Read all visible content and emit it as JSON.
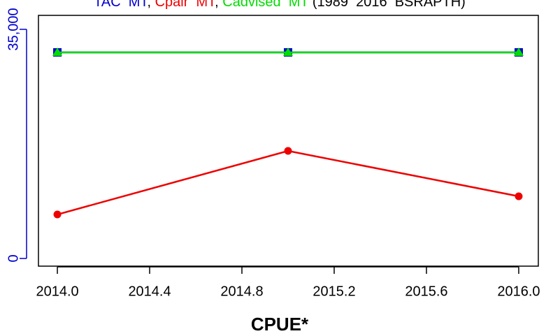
{
  "chart_data": {
    "type": "line",
    "title_parts": [
      {
        "text": "TAC  MT",
        "color": "#0000cc"
      },
      {
        "text": ", ",
        "color": "#000000"
      },
      {
        "text": "Cpair  MT",
        "color": "#ee0000"
      },
      {
        "text": ", ",
        "color": "#000000"
      },
      {
        "text": "Cadvised  MT",
        "color": "#00dd00"
      },
      {
        "text": " (1989  2016  BSRAPTH)",
        "color": "#000000"
      }
    ],
    "x_label": "CPUE*",
    "x": [
      2014,
      2015,
      2016
    ],
    "series": [
      {
        "name": "TAC",
        "color": "#0000cc",
        "marker": "square",
        "values": [
          31480,
          31480,
          31480
        ]
      },
      {
        "name": "Cpair",
        "color": "#ee0000",
        "marker": "circle",
        "values": [
          6720,
          16430,
          9500
        ]
      },
      {
        "name": "Cadvised",
        "color": "#00dd00",
        "marker": "triangle",
        "values": [
          31480,
          31480,
          31480
        ]
      }
    ],
    "xlim": [
      2013.918,
      2016.085
    ],
    "ylim": [
      -1174,
      37134
    ],
    "xticks": [
      {
        "value": 2014,
        "label": "2014.0"
      },
      2014.4,
      2014.8,
      {
        "value": 2015.2,
        "label": "2015.2"
      },
      2015.6,
      {
        "value": 2016,
        "label": "2016.0"
      }
    ],
    "yticks": [
      0,
      {
        "value": 35000,
        "label": "35,000"
      }
    ],
    "y_axis_color": "#0000cc"
  }
}
